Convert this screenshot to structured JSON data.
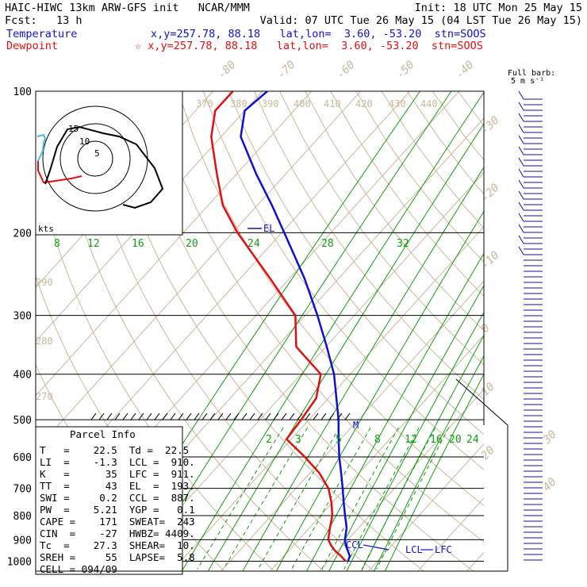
{
  "header": {
    "line1_left": "HAIC-HIWC 13km ARW-GFS init   NCAR/MMM",
    "line1_right": "Init: 18 UTC Mon 25 May 15",
    "line2_left": "Fcst:   13 h",
    "line2_right": "Valid: 07 UTC Tue 26 May 15 (04 LST Tue 26 May 15)",
    "temp_label": "Temperature",
    "temp_info": "x,y=257.78, 88.18   lat,lon=  3.60, -53.20  stn=SOOS",
    "dew_label": "Dewpoint",
    "dew_info": "☆ x,y=257.78, 88.18   lat,lon=  3.60, -53.20  stn=SOOS",
    "barb_title": "Full barb:",
    "barb_unit": "5 m s⁻¹"
  },
  "colors": {
    "temperature": "#1010d0",
    "dewpoint": "#e01010",
    "isotherm": "#c8b89a",
    "mixing_ratio": "#10a010",
    "isobar": "#000000",
    "hodo_red": "#e01010",
    "hodo_cyan": "#40c0e0"
  },
  "chart_data": {
    "type": "line",
    "title": "",
    "xlabel": "",
    "ylabel": "",
    "yscale": "log",
    "y_inverted": true,
    "isobar_labels": [
      "100",
      "200",
      "300",
      "400",
      "500",
      "600",
      "700",
      "800",
      "900",
      "1000"
    ],
    "isobar_values": [
      100,
      200,
      300,
      400,
      500,
      600,
      700,
      800,
      900,
      1000
    ],
    "isotherm_labels": [
      "-80",
      "-70",
      "-60",
      "-50",
      "-40",
      "-30",
      "-20",
      "-10",
      "0",
      "10",
      "20",
      "30",
      "40"
    ],
    "isotherm_values": [
      -80,
      -70,
      -60,
      -50,
      -40,
      -30,
      -20,
      -10,
      0,
      10,
      20,
      30,
      40
    ],
    "theta_labels": [
      "370",
      "380",
      "390",
      "400",
      "410",
      "420",
      "430",
      "440",
      "290",
      "280",
      "270"
    ],
    "mixing_ratio_upper_labels": [
      "8",
      "12",
      "16",
      "20",
      "24",
      "28",
      "32"
    ],
    "mixing_ratio_lower_labels": [
      "2",
      "3",
      "5",
      "8",
      "12",
      "16",
      "20",
      "24"
    ],
    "series": [
      {
        "name": "Temperature",
        "points": [
          {
            "p": 1000,
            "t": 24.0
          },
          {
            "p": 975,
            "t": 23.4
          },
          {
            "p": 950,
            "t": 22.0
          },
          {
            "p": 925,
            "t": 20.6
          },
          {
            "p": 900,
            "t": 19.4
          },
          {
            "p": 850,
            "t": 17.6
          },
          {
            "p": 800,
            "t": 15.0
          },
          {
            "p": 750,
            "t": 12.3
          },
          {
            "p": 700,
            "t": 9.5
          },
          {
            "p": 650,
            "t": 6.4
          },
          {
            "p": 600,
            "t": 3.0
          },
          {
            "p": 550,
            "t": -0.4
          },
          {
            "p": 500,
            "t": -4.0
          },
          {
            "p": 450,
            "t": -8.4
          },
          {
            "p": 400,
            "t": -13.3
          },
          {
            "p": 350,
            "t": -19.8
          },
          {
            "p": 300,
            "t": -27.5
          },
          {
            "p": 250,
            "t": -37.0
          },
          {
            "p": 200,
            "t": -49.5
          },
          {
            "p": 175,
            "t": -57.0
          },
          {
            "p": 150,
            "t": -66.0
          },
          {
            "p": 125,
            "t": -76.0
          },
          {
            "p": 110,
            "t": -80.0
          },
          {
            "p": 100,
            "t": -79.0
          }
        ]
      },
      {
        "name": "Dewpoint",
        "points": [
          {
            "p": 1000,
            "t": 23.5
          },
          {
            "p": 975,
            "t": 21.6
          },
          {
            "p": 950,
            "t": 19.4
          },
          {
            "p": 925,
            "t": 17.6
          },
          {
            "p": 900,
            "t": 16.0
          },
          {
            "p": 850,
            "t": 14.2
          },
          {
            "p": 800,
            "t": 12.4
          },
          {
            "p": 750,
            "t": 9.8
          },
          {
            "p": 700,
            "t": 6.6
          },
          {
            "p": 650,
            "t": 2.0
          },
          {
            "p": 600,
            "t": -4.0
          },
          {
            "p": 550,
            "t": -11.0
          },
          {
            "p": 500,
            "t": -11.6
          },
          {
            "p": 450,
            "t": -12.5
          },
          {
            "p": 400,
            "t": -16.0
          },
          {
            "p": 350,
            "t": -26.0
          },
          {
            "p": 300,
            "t": -32.0
          },
          {
            "p": 250,
            "t": -44.0
          },
          {
            "p": 200,
            "t": -59.0
          },
          {
            "p": 175,
            "t": -67.0
          },
          {
            "p": 150,
            "t": -74.0
          },
          {
            "p": 125,
            "t": -82.0
          },
          {
            "p": 110,
            "t": -86.0
          },
          {
            "p": 100,
            "t": -86.0
          }
        ]
      }
    ],
    "annotations": [
      "EL",
      "LCL",
      "LFC",
      "CCL",
      "M"
    ],
    "hodograph": {
      "units_label": "kts",
      "ring_labels": [
        "5",
        "10",
        "15"
      ]
    },
    "parcel_info": {
      "title": "Parcel Info",
      "rows": [
        "T   =    22.5  Td =  22.5",
        "LI  =    -1.3  LCL =  910.",
        "K   =      35  LFC =  911.",
        "TT  =      43  EL  =  193.",
        "SWI =     0.2  CCL =  887.",
        "PW  =    5.21  YGP =   0.1",
        "CAPE =    171  SWEAT=  243",
        "CIN  =    -27  HWBZ= 4409.",
        "Tc  =    27.3  SHEAR=  10.",
        "SREH =     55  LAPSE=  5.8",
        "CELL = 094/09"
      ]
    }
  }
}
